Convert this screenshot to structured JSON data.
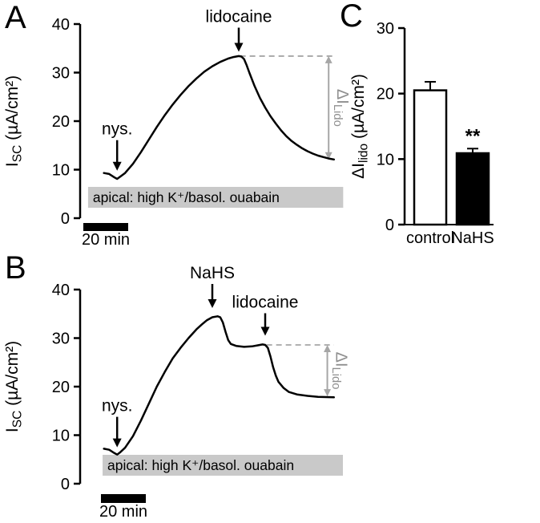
{
  "figure": {
    "panel_labels": {
      "a": "A",
      "b": "B",
      "c": "C"
    }
  },
  "chart_data": [
    {
      "id": "A",
      "type": "line",
      "title": "",
      "ylabel_parts": {
        "pre": "I",
        "sub": "SC",
        "post": " (µA/cm²)"
      },
      "ylim": [
        0,
        40
      ],
      "yticks": [
        0,
        10,
        20,
        30,
        40
      ],
      "xlim": [
        0,
        100
      ],
      "x_scalebar": {
        "label": "20 min"
      },
      "line_color": "#000000",
      "dash_color": "#a6a6a6",
      "trace": [
        [
          9,
          9.3
        ],
        [
          11,
          9.1
        ],
        [
          13,
          8.4
        ],
        [
          14,
          8.1
        ],
        [
          15,
          8.5
        ],
        [
          17,
          9.3
        ],
        [
          20,
          11.2
        ],
        [
          23,
          13.6
        ],
        [
          26,
          16.2
        ],
        [
          29,
          18.8
        ],
        [
          32,
          21.2
        ],
        [
          35,
          23.4
        ],
        [
          38,
          25.4
        ],
        [
          41,
          27.2
        ],
        [
          44,
          28.8
        ],
        [
          47,
          30.2
        ],
        [
          50,
          31.3
        ],
        [
          53,
          32.2
        ],
        [
          56,
          32.9
        ],
        [
          58,
          33.2
        ],
        [
          60,
          33.4
        ],
        [
          61,
          33.3
        ],
        [
          62,
          32.8
        ],
        [
          63,
          31.5
        ],
        [
          64,
          30.0
        ],
        [
          66,
          27.2
        ],
        [
          68,
          24.8
        ],
        [
          70,
          22.8
        ],
        [
          72,
          21.0
        ],
        [
          74,
          19.5
        ],
        [
          76,
          18.1
        ],
        [
          78,
          16.9
        ],
        [
          80,
          15.9
        ],
        [
          82,
          15.1
        ],
        [
          84,
          14.4
        ],
        [
          86,
          13.8
        ],
        [
          88,
          13.3
        ],
        [
          90,
          12.9
        ],
        [
          92,
          12.6
        ],
        [
          94,
          12.3
        ],
        [
          96,
          12.1
        ]
      ],
      "annotations": [
        {
          "label": "nys.",
          "x": 14,
          "tip_y": 9.8,
          "len": 38
        },
        {
          "label": "lidocaine",
          "x": 60,
          "tip_y": 34.3,
          "len": 30
        }
      ],
      "dashed_level": {
        "y": 33.4,
        "x1": 60.5,
        "x2": 96
      },
      "delta_arrow": {
        "x": 94,
        "y1": 33.4,
        "y2": 12.1,
        "label_parts": {
          "pre": "ΔI",
          "sub": "Lido"
        }
      },
      "condition_box": {
        "text": "apical: high K⁺/basol. ouabain",
        "y_center": 4.3,
        "x1": 3,
        "x2": 99.5
      }
    },
    {
      "id": "B",
      "type": "line",
      "title": "",
      "ylabel_parts": {
        "pre": "I",
        "sub": "SC",
        "post": " (µA/cm²)"
      },
      "ylim": [
        0,
        40
      ],
      "yticks": [
        0,
        10,
        20,
        30,
        40
      ],
      "xlim": [
        0,
        100
      ],
      "x_scalebar": {
        "label": "20 min"
      },
      "line_color": "#000000",
      "dash_color": "#a6a6a6",
      "trace": [
        [
          9,
          7.2
        ],
        [
          11,
          7.0
        ],
        [
          13,
          6.3
        ],
        [
          14,
          6.0
        ],
        [
          15,
          6.4
        ],
        [
          17,
          7.4
        ],
        [
          20,
          9.8
        ],
        [
          23,
          13.0
        ],
        [
          26,
          16.5
        ],
        [
          29,
          20.0
        ],
        [
          32,
          23.0
        ],
        [
          35,
          25.8
        ],
        [
          38,
          28.0
        ],
        [
          41,
          30.0
        ],
        [
          44,
          31.8
        ],
        [
          46,
          32.8
        ],
        [
          48,
          33.7
        ],
        [
          50,
          34.3
        ],
        [
          52,
          34.5
        ],
        [
          53,
          34.3
        ],
        [
          54,
          33.2
        ],
        [
          55,
          31.3
        ],
        [
          56,
          29.6
        ],
        [
          57,
          28.8
        ],
        [
          59,
          28.4
        ],
        [
          62,
          28.2
        ],
        [
          65,
          28.3
        ],
        [
          67,
          28.5
        ],
        [
          69,
          28.7
        ],
        [
          70,
          28.6
        ],
        [
          71,
          28.0
        ],
        [
          72,
          26.2
        ],
        [
          73,
          24.0
        ],
        [
          74,
          22.3
        ],
        [
          75,
          21.0
        ],
        [
          77,
          19.7
        ],
        [
          79,
          18.9
        ],
        [
          82,
          18.4
        ],
        [
          86,
          18.1
        ],
        [
          90,
          17.9
        ],
        [
          96,
          17.8
        ]
      ],
      "annotations": [
        {
          "label": "nys.",
          "x": 14,
          "tip_y": 7.5,
          "len": 38
        },
        {
          "label": "NaHS",
          "x": 50,
          "tip_y": 36.2,
          "len": 30
        },
        {
          "label": "lidocaine",
          "x": 70,
          "tip_y": 30.5,
          "len": 28
        }
      ],
      "dashed_level": {
        "y": 28.6,
        "x1": 70.5,
        "x2": 96
      },
      "delta_arrow": {
        "x": 93.5,
        "y1": 28.6,
        "y2": 18.0,
        "label_parts": {
          "pre": "ΔI",
          "sub": "Lido"
        }
      },
      "condition_box": {
        "text": "apical: high K⁺/basol. ouabain",
        "y_center": 3.8,
        "x1": 8.5,
        "x2": 99.4
      }
    },
    {
      "id": "C",
      "type": "bar",
      "title": "",
      "categories": [
        "control",
        "NaHS"
      ],
      "values": [
        20.5,
        10.9
      ],
      "errors": [
        1.3,
        0.7
      ],
      "bar_colors": [
        "#ffffff",
        "#000000"
      ],
      "significance": {
        "index": 1,
        "text": "**"
      },
      "ylabel_parts": {
        "pre": "ΔI",
        "sub": "lido",
        "post": " (µA/cm²)"
      },
      "ylim": [
        0,
        30
      ],
      "yticks": [
        0,
        10,
        20,
        30
      ]
    }
  ]
}
